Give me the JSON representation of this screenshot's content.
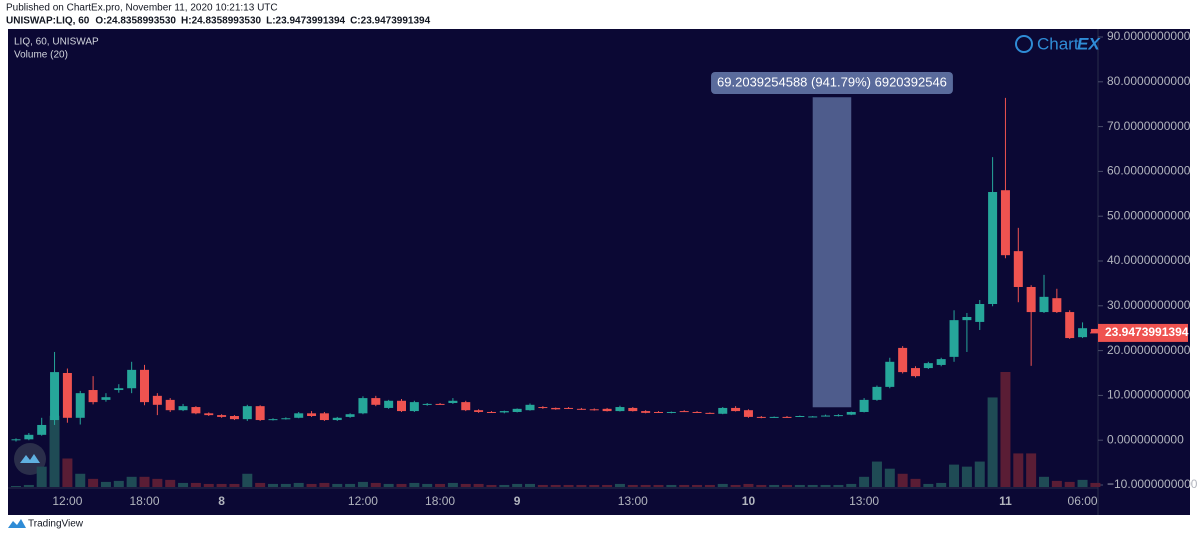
{
  "chart_data": {
    "type": "candlestick",
    "published": "Published on ChartEx.pro, November 11, 2020 10:21:13 UTC",
    "symbol": "UNISWAP:LIQ, 60",
    "ohlc_legend": [
      {
        "label": "O:",
        "value": "24.8358993530"
      },
      {
        "label": "H:",
        "value": "24.8358993530"
      },
      {
        "label": "L:",
        "value": "23.9473991394"
      },
      {
        "label": "C:",
        "value": "23.9473991394"
      }
    ],
    "title": "LIQ, 60, UNISWAP",
    "volume_title": "Volume (20)",
    "logo": [
      "Chart",
      "EX"
    ],
    "footer": "TradingView",
    "up_color": "#26a69a",
    "down_color": "#ef5350",
    "volume_up_color": "#1f4b55",
    "volume_down_color": "#5a1d35",
    "categories": [
      null,
      null,
      null,
      null,
      "12:00",
      null,
      null,
      null,
      null,
      null,
      "18:00",
      null,
      null,
      null,
      null,
      null,
      "8",
      null,
      null,
      null,
      null,
      null,
      null,
      null,
      null,
      null,
      null,
      "12:00",
      null,
      null,
      null,
      null,
      null,
      "18:00",
      null,
      null,
      null,
      null,
      null,
      "9",
      null,
      null,
      null,
      null,
      null,
      null,
      null,
      null,
      "13:00",
      null,
      null,
      null,
      null,
      null,
      null,
      null,
      null,
      "10",
      null,
      null,
      null,
      null,
      null,
      null,
      null,
      null,
      "13:00",
      null,
      null,
      null,
      null,
      null,
      null,
      null,
      null,
      null,
      null,
      "11",
      null,
      null,
      null,
      null,
      null,
      "06:00",
      null
    ],
    "open": [
      0.0,
      0.2,
      1.2,
      4.5,
      15.0,
      5.0,
      11.2,
      9.0,
      11.2,
      11.6,
      15.7,
      9.9,
      9.0,
      6.7,
      7.4,
      6.0,
      5.6,
      5.4,
      4.7,
      7.6,
      4.5,
      4.7,
      5.0,
      6.0,
      6.0,
      4.5,
      5.2,
      6.0,
      9.4,
      7.2,
      8.8,
      6.5,
      7.9,
      8.1,
      8.3,
      8.5,
      6.7,
      6.3,
      6.2,
      6.3,
      6.7,
      7.4,
      7.2,
      7.2,
      7.0,
      6.9,
      7.0,
      6.5,
      7.2,
      6.5,
      6.3,
      6.2,
      6.5,
      6.3,
      6.1,
      5.9,
      7.2,
      6.7,
      5.2,
      5.1,
      5.2,
      5.3,
      5.2,
      5.4,
      5.5,
      5.7,
      6.3,
      9.0,
      11.9,
      20.6,
      16.1,
      16.1,
      16.8,
      18.6,
      26.8,
      26.4,
      30.4,
      55.8,
      42.2,
      34.2,
      28.6,
      31.7,
      28.6,
      23.0,
      24.835899353
    ],
    "high": [
      0.4,
      1.6,
      5.0,
      19.7,
      16.0,
      11.0,
      14.3,
      10.5,
      12.5,
      17.5,
      16.8,
      10.5,
      9.4,
      8.1,
      7.6,
      6.2,
      5.8,
      5.6,
      7.9,
      7.8,
      4.9,
      5.1,
      6.3,
      6.5,
      6.3,
      5.2,
      6.0,
      9.8,
      9.9,
      9.0,
      9.2,
      8.8,
      8.3,
      8.3,
      9.4,
      8.8,
      6.9,
      6.5,
      6.6,
      7.1,
      8.2,
      7.6,
      7.3,
      7.4,
      7.2,
      7.1,
      7.2,
      7.7,
      7.4,
      6.7,
      6.5,
      6.4,
      6.7,
      6.5,
      6.2,
      7.4,
      7.6,
      6.9,
      5.4,
      5.3,
      5.4,
      5.5,
      5.4,
      5.7,
      5.8,
      6.4,
      9.4,
      12.2,
      18.4,
      21.0,
      16.5,
      17.5,
      18.4,
      29.0,
      28.4,
      31.3,
      63.2,
      76.4,
      47.4,
      34.6,
      36.9,
      33.8,
      29.0,
      26.3,
      24.835899353
    ],
    "low": [
      -0.3,
      0.0,
      1.0,
      3.4,
      3.9,
      3.5,
      8.0,
      8.6,
      10.6,
      10.5,
      7.8,
      5.6,
      6.3,
      6.5,
      5.8,
      5.4,
      5.0,
      4.5,
      4.3,
      4.3,
      4.4,
      4.6,
      4.9,
      5.2,
      4.3,
      4.3,
      5.0,
      5.8,
      7.6,
      7.0,
      6.3,
      6.3,
      7.7,
      7.9,
      8.1,
      6.5,
      6.1,
      6.1,
      6.0,
      6.2,
      6.6,
      7.0,
      6.8,
      7.0,
      6.8,
      6.6,
      6.4,
      6.4,
      6.4,
      6.0,
      6.1,
      6.0,
      6.3,
      6.2,
      5.9,
      5.8,
      6.4,
      5.0,
      4.9,
      5.0,
      5.0,
      5.2,
      5.1,
      5.3,
      5.3,
      5.6,
      6.2,
      8.8,
      11.6,
      14.9,
      14.0,
      15.9,
      16.5,
      17.5,
      19.7,
      24.6,
      29.9,
      40.6,
      30.8,
      16.6,
      28.4,
      28.4,
      22.6,
      22.8,
      23.9473991394
    ],
    "close": [
      0.2,
      1.2,
      3.4,
      15.2,
      5.0,
      10.5,
      8.5,
      9.6,
      11.6,
      15.7,
      8.5,
      7.9,
      6.7,
      7.6,
      6.0,
      5.6,
      5.2,
      4.7,
      7.6,
      4.5,
      4.7,
      4.9,
      6.0,
      5.4,
      4.5,
      5.0,
      5.8,
      9.4,
      7.9,
      8.8,
      6.5,
      8.5,
      8.1,
      8.0,
      8.8,
      6.7,
      6.3,
      6.2,
      6.5,
      7.0,
      7.9,
      7.2,
      6.9,
      7.1,
      6.9,
      6.7,
      6.5,
      7.4,
      6.5,
      6.1,
      6.2,
      6.3,
      6.4,
      6.2,
      6.0,
      7.2,
      6.5,
      5.2,
      5.0,
      5.2,
      5.1,
      5.4,
      5.3,
      5.5,
      5.6,
      6.3,
      9.0,
      11.9,
      17.5,
      15.2,
      14.3,
      17.2,
      18.1,
      26.8,
      27.5,
      30.4,
      55.4,
      41.3,
      34.2,
      28.6,
      32.0,
      28.6,
      22.8,
      25.0,
      23.9473991394
    ],
    "volume": [
      1,
      2,
      20,
      70,
      28,
      13,
      8,
      5,
      6,
      10,
      10,
      8,
      7,
      4,
      4,
      3,
      3,
      3,
      13,
      4,
      3,
      3,
      4,
      3,
      4,
      3,
      3,
      5,
      4,
      3,
      3,
      4,
      3,
      3,
      4,
      3,
      3,
      2,
      2,
      3,
      3,
      2,
      2,
      2,
      2,
      2,
      2,
      3,
      2,
      2,
      2,
      2,
      2,
      2,
      2,
      3,
      2,
      3,
      2,
      2,
      2,
      2,
      2,
      2,
      2,
      3,
      10,
      25,
      18,
      13,
      8,
      3,
      4,
      22,
      20,
      25,
      88,
      113,
      33,
      33,
      10,
      6,
      5,
      7,
      4
    ],
    "ylim": [
      -10,
      90
    ],
    "yticks": [
      {
        "value": 90,
        "label": "90.0000000000"
      },
      {
        "value": 80,
        "label": "80.0000000000"
      },
      {
        "value": 70,
        "label": "70.0000000000"
      },
      {
        "value": 60,
        "label": "60.0000000000"
      },
      {
        "value": 50,
        "label": "50.0000000000"
      },
      {
        "value": 40,
        "label": "40.0000000000"
      },
      {
        "value": 30,
        "label": "30.0000000000"
      },
      {
        "value": 20,
        "label": "20.0000000000"
      },
      {
        "value": 10,
        "label": "10.0000000000"
      },
      {
        "value": 0,
        "label": "0.0000000000"
      },
      {
        "value": -10,
        "label": "−10.0000000000"
      }
    ],
    "last_price": 23.9473991394,
    "measure": {
      "label": "69.2039254588 (941.79%) 6920392546",
      "low": 7.35,
      "high": 76.55,
      "bars": [
        62,
        65
      ],
      "color": "#5a6b9c"
    },
    "grid": false
  }
}
